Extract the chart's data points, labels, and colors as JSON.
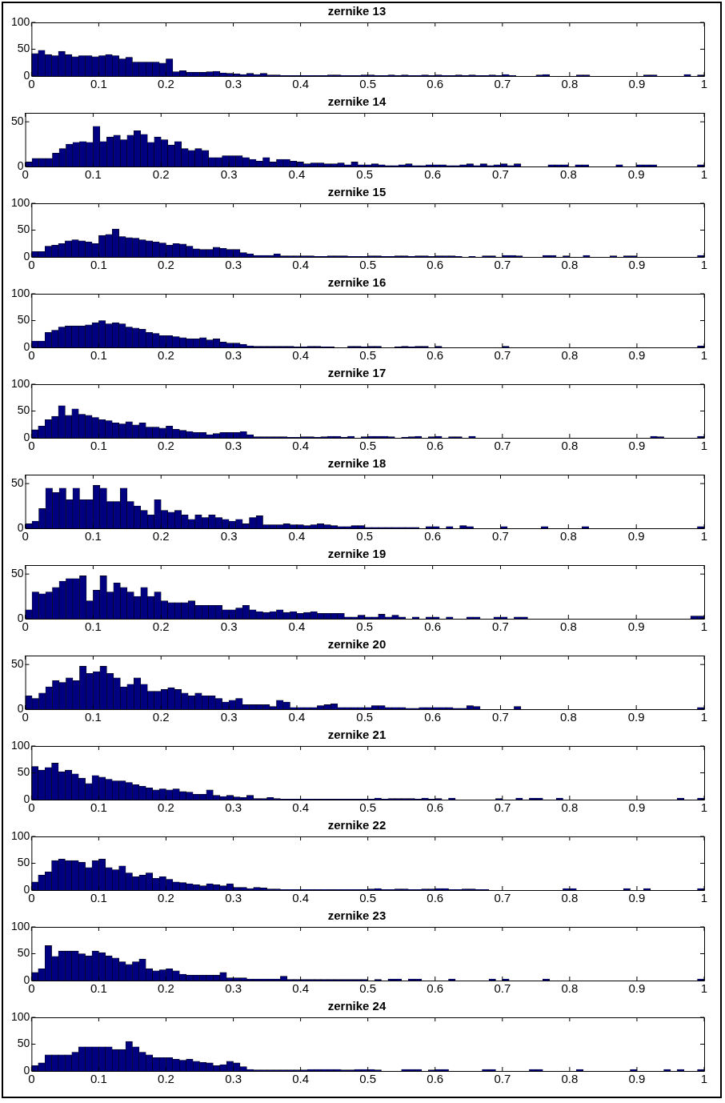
{
  "chart_data": [
    {
      "type": "histogram",
      "title": "zernike 13",
      "color": "#000080",
      "xlim": [
        0,
        1
      ],
      "xticks": [
        0,
        0.1,
        0.2,
        0.3,
        0.4,
        0.5,
        0.6,
        0.7,
        0.8,
        0.9,
        1
      ],
      "ylim": [
        0,
        100
      ],
      "yticks": [
        0,
        50,
        100
      ],
      "bins": [
        0,
        0.01,
        0.02,
        0.03,
        0.04,
        0.05,
        0.06,
        0.07,
        0.08,
        0.09,
        0.1,
        0.11,
        0.12,
        0.13,
        0.14,
        0.15,
        0.16,
        0.17,
        0.18,
        0.19,
        0.2,
        0.21,
        0.22,
        0.23,
        0.24,
        0.25,
        0.26,
        0.27,
        0.28,
        0.29,
        0.3,
        0.31,
        0.32,
        0.33,
        0.34,
        0.35,
        0.36,
        0.37,
        0.38,
        0.39,
        0.4,
        0.41,
        0.42,
        0.43,
        0.44,
        0.45,
        0.46,
        0.47,
        0.48,
        0.49,
        0.5,
        0.51,
        0.52,
        0.53,
        0.54,
        0.55,
        0.56,
        0.57,
        0.58,
        0.59,
        0.6,
        0.61,
        0.62,
        0.63,
        0.64,
        0.65,
        0.66,
        0.67,
        0.68,
        0.69,
        0.7,
        0.71,
        0.72,
        0.73,
        0.74,
        0.75,
        0.76,
        0.77,
        0.78,
        0.79,
        0.8,
        0.81,
        0.82,
        0.83,
        0.84,
        0.85,
        0.86,
        0.87,
        0.88,
        0.89,
        0.9,
        0.91,
        0.92,
        0.93,
        0.94,
        0.95,
        0.96,
        0.97,
        0.98,
        0.99,
        1
      ],
      "values": [
        42,
        48,
        40,
        38,
        46,
        40,
        36,
        38,
        38,
        36,
        38,
        40,
        38,
        32,
        35,
        26,
        26,
        26,
        26,
        24,
        32,
        8,
        10,
        7,
        7,
        7,
        8,
        9,
        6,
        5,
        4,
        3,
        5,
        3,
        5,
        2,
        2,
        1,
        1,
        1,
        1,
        1,
        1,
        1,
        2,
        2,
        1,
        1,
        1,
        2,
        2,
        1,
        1,
        2,
        1,
        2,
        1,
        1,
        2,
        1,
        2,
        1,
        1,
        2,
        1,
        2,
        1,
        1,
        2,
        1,
        3,
        1,
        0,
        0,
        0,
        2,
        3,
        0,
        0,
        0,
        0,
        2,
        2,
        0,
        0,
        0,
        0,
        0,
        0,
        0,
        0,
        2,
        2,
        0,
        0,
        0,
        0,
        3,
        0,
        2
      ]
    },
    {
      "type": "histogram",
      "title": "zernike 14",
      "color": "#000080",
      "xlim": [
        0,
        1
      ],
      "xticks": [
        0,
        0.1,
        0.2,
        0.3,
        0.4,
        0.5,
        0.6,
        0.7,
        0.8,
        0.9,
        1
      ],
      "ylim": [
        0,
        60
      ],
      "yticks": [
        0,
        50
      ],
      "bins": [
        0,
        0.01,
        0.02,
        0.03,
        0.04,
        0.05,
        0.06,
        0.07,
        0.08,
        0.09,
        0.1,
        0.11,
        0.12,
        0.13,
        0.14,
        0.15,
        0.16,
        0.17,
        0.18,
        0.19,
        0.2,
        0.21,
        0.22,
        0.23,
        0.24,
        0.25,
        0.26,
        0.27,
        0.28,
        0.29,
        0.3,
        0.31,
        0.32,
        0.33,
        0.34,
        0.35,
        0.36,
        0.37,
        0.38,
        0.39,
        0.4,
        0.41,
        0.42,
        0.43,
        0.44,
        0.45,
        0.46,
        0.47,
        0.48,
        0.49,
        0.5,
        0.51,
        0.52,
        0.53,
        0.54,
        0.55,
        0.56,
        0.57,
        0.58,
        0.59,
        0.6,
        0.61,
        0.62,
        0.63,
        0.64,
        0.65,
        0.66,
        0.67,
        0.68,
        0.69,
        0.7,
        0.71,
        0.72,
        0.73,
        0.74,
        0.75,
        0.76,
        0.77,
        0.78,
        0.79,
        0.8,
        0.81,
        0.82,
        0.83,
        0.84,
        0.85,
        0.86,
        0.87,
        0.88,
        0.89,
        0.9,
        0.91,
        0.92,
        0.93,
        0.94,
        0.95,
        0.96,
        0.97,
        0.98,
        0.99,
        1
      ],
      "values": [
        5,
        9,
        9,
        9,
        15,
        20,
        25,
        27,
        28,
        27,
        45,
        28,
        33,
        35,
        30,
        35,
        40,
        36,
        27,
        33,
        30,
        24,
        28,
        20,
        18,
        20,
        18,
        10,
        10,
        12,
        12,
        12,
        10,
        8,
        6,
        10,
        5,
        8,
        8,
        6,
        5,
        3,
        4,
        4,
        3,
        3,
        4,
        2,
        5,
        2,
        2,
        3,
        2,
        1,
        1,
        2,
        3,
        1,
        1,
        2,
        2,
        2,
        1,
        1,
        2,
        3,
        1,
        3,
        1,
        2,
        3,
        1,
        3,
        0,
        0,
        0,
        0,
        2,
        2,
        2,
        0,
        2,
        2,
        0,
        0,
        0,
        0,
        2,
        0,
        0,
        2,
        2,
        2,
        0,
        0,
        0,
        0,
        0,
        0,
        2
      ]
    },
    {
      "type": "histogram",
      "title": "zernike 15",
      "color": "#000080",
      "xlim": [
        0,
        1
      ],
      "xticks": [
        0,
        0.1,
        0.2,
        0.3,
        0.4,
        0.5,
        0.6,
        0.7,
        0.8,
        0.9,
        1
      ],
      "ylim": [
        0,
        100
      ],
      "yticks": [
        0,
        50,
        100
      ],
      "bins": [
        0,
        0.01,
        0.02,
        0.03,
        0.04,
        0.05,
        0.06,
        0.07,
        0.08,
        0.09,
        0.1,
        0.11,
        0.12,
        0.13,
        0.14,
        0.15,
        0.16,
        0.17,
        0.18,
        0.19,
        0.2,
        0.21,
        0.22,
        0.23,
        0.24,
        0.25,
        0.26,
        0.27,
        0.28,
        0.29,
        0.3,
        0.31,
        0.32,
        0.33,
        0.34,
        0.35,
        0.36,
        0.37,
        0.38,
        0.39,
        0.4,
        0.41,
        0.42,
        0.43,
        0.44,
        0.45,
        0.46,
        0.47,
        0.48,
        0.49,
        0.5,
        0.51,
        0.52,
        0.53,
        0.54,
        0.55,
        0.56,
        0.57,
        0.58,
        0.59,
        0.6,
        0.61,
        0.62,
        0.63,
        0.64,
        0.65,
        0.66,
        0.67,
        0.68,
        0.69,
        0.7,
        0.71,
        0.72,
        0.73,
        0.74,
        0.75,
        0.76,
        0.77,
        0.78,
        0.79,
        0.8,
        0.81,
        0.82,
        0.83,
        0.84,
        0.85,
        0.86,
        0.87,
        0.88,
        0.89,
        0.9,
        0.91,
        0.92,
        0.93,
        0.94,
        0.95,
        0.96,
        0.97,
        0.98,
        0.99,
        1
      ],
      "values": [
        10,
        10,
        20,
        22,
        25,
        30,
        32,
        30,
        28,
        25,
        40,
        42,
        52,
        38,
        36,
        35,
        32,
        30,
        28,
        26,
        22,
        25,
        24,
        20,
        15,
        14,
        14,
        18,
        16,
        14,
        14,
        8,
        6,
        3,
        3,
        3,
        6,
        2,
        2,
        2,
        2,
        2,
        1,
        1,
        2,
        2,
        2,
        1,
        1,
        1,
        2,
        2,
        1,
        1,
        2,
        2,
        1,
        2,
        2,
        1,
        2,
        2,
        2,
        1,
        0,
        1,
        0,
        2,
        2,
        0,
        3,
        3,
        2,
        0,
        0,
        0,
        3,
        3,
        0,
        2,
        0,
        0,
        3,
        0,
        0,
        0,
        2,
        0,
        2,
        2,
        0,
        0,
        0,
        0,
        0,
        0,
        0,
        0,
        0,
        3
      ]
    },
    {
      "type": "histogram",
      "title": "zernike 16",
      "color": "#000080",
      "xlim": [
        0,
        1
      ],
      "xticks": [
        0,
        0.1,
        0.2,
        0.3,
        0.4,
        0.5,
        0.6,
        0.7,
        0.8,
        0.9,
        1
      ],
      "ylim": [
        0,
        100
      ],
      "yticks": [
        0,
        50,
        100
      ],
      "bins": [
        0,
        0.01,
        0.02,
        0.03,
        0.04,
        0.05,
        0.06,
        0.07,
        0.08,
        0.09,
        0.1,
        0.11,
        0.12,
        0.13,
        0.14,
        0.15,
        0.16,
        0.17,
        0.18,
        0.19,
        0.2,
        0.21,
        0.22,
        0.23,
        0.24,
        0.25,
        0.26,
        0.27,
        0.28,
        0.29,
        0.3,
        0.31,
        0.32,
        0.33,
        0.34,
        0.35,
        0.36,
        0.37,
        0.38,
        0.39,
        0.4,
        0.41,
        0.42,
        0.43,
        0.44,
        0.45,
        0.46,
        0.47,
        0.48,
        0.49,
        0.5,
        0.51,
        0.52,
        0.53,
        0.54,
        0.55,
        0.56,
        0.57,
        0.58,
        0.59,
        0.6,
        0.61,
        0.62,
        0.63,
        0.64,
        0.65,
        0.66,
        0.67,
        0.68,
        0.69,
        0.7,
        0.71,
        0.72,
        0.73,
        0.74,
        0.75,
        0.76,
        0.77,
        0.78,
        0.79,
        0.8,
        0.81,
        0.82,
        0.83,
        0.84,
        0.85,
        0.86,
        0.87,
        0.88,
        0.89,
        0.9,
        0.91,
        0.92,
        0.93,
        0.94,
        0.95,
        0.96,
        0.97,
        0.98,
        0.99,
        1
      ],
      "values": [
        12,
        12,
        28,
        32,
        38,
        40,
        40,
        40,
        42,
        46,
        50,
        44,
        46,
        44,
        38,
        36,
        34,
        28,
        26,
        22,
        22,
        20,
        18,
        16,
        16,
        18,
        14,
        16,
        10,
        8,
        8,
        6,
        3,
        2,
        2,
        2,
        2,
        2,
        2,
        1,
        1,
        2,
        2,
        1,
        1,
        0,
        0,
        2,
        2,
        1,
        2,
        2,
        0,
        0,
        1,
        2,
        1,
        2,
        2,
        0,
        2,
        0,
        0,
        0,
        0,
        0,
        0,
        0,
        0,
        0,
        2,
        0,
        0,
        0,
        0,
        0,
        0,
        0,
        0,
        0,
        0,
        0,
        0,
        0,
        0,
        0,
        0,
        0,
        0,
        0,
        0,
        0,
        0,
        0,
        0,
        0,
        0,
        0,
        0,
        3
      ]
    },
    {
      "type": "histogram",
      "title": "zernike 17",
      "color": "#000080",
      "xlim": [
        0,
        1
      ],
      "xticks": [
        0,
        0.1,
        0.2,
        0.3,
        0.4,
        0.5,
        0.6,
        0.7,
        0.8,
        0.9,
        1
      ],
      "ylim": [
        0,
        100
      ],
      "yticks": [
        0,
        50,
        100
      ],
      "bins": [
        0,
        0.01,
        0.02,
        0.03,
        0.04,
        0.05,
        0.06,
        0.07,
        0.08,
        0.09,
        0.1,
        0.11,
        0.12,
        0.13,
        0.14,
        0.15,
        0.16,
        0.17,
        0.18,
        0.19,
        0.2,
        0.21,
        0.22,
        0.23,
        0.24,
        0.25,
        0.26,
        0.27,
        0.28,
        0.29,
        0.3,
        0.31,
        0.32,
        0.33,
        0.34,
        0.35,
        0.36,
        0.37,
        0.38,
        0.39,
        0.4,
        0.41,
        0.42,
        0.43,
        0.44,
        0.45,
        0.46,
        0.47,
        0.48,
        0.49,
        0.5,
        0.51,
        0.52,
        0.53,
        0.54,
        0.55,
        0.56,
        0.57,
        0.58,
        0.59,
        0.6,
        0.61,
        0.62,
        0.63,
        0.64,
        0.65,
        0.66,
        0.67,
        0.68,
        0.69,
        0.7,
        0.71,
        0.72,
        0.73,
        0.74,
        0.75,
        0.76,
        0.77,
        0.78,
        0.79,
        0.8,
        0.81,
        0.82,
        0.83,
        0.84,
        0.85,
        0.86,
        0.87,
        0.88,
        0.89,
        0.9,
        0.91,
        0.92,
        0.93,
        0.94,
        0.95,
        0.96,
        0.97,
        0.98,
        0.99,
        1
      ],
      "values": [
        15,
        22,
        34,
        40,
        60,
        42,
        54,
        44,
        42,
        38,
        34,
        32,
        28,
        26,
        30,
        24,
        28,
        20,
        20,
        18,
        22,
        16,
        14,
        12,
        10,
        10,
        6,
        8,
        10,
        10,
        10,
        12,
        6,
        2,
        2,
        2,
        2,
        2,
        1,
        1,
        2,
        2,
        1,
        2,
        3,
        3,
        1,
        3,
        0,
        2,
        3,
        3,
        3,
        2,
        0,
        1,
        2,
        3,
        0,
        2,
        3,
        0,
        2,
        2,
        0,
        3,
        0,
        0,
        0,
        0,
        0,
        0,
        0,
        0,
        0,
        0,
        0,
        0,
        0,
        0,
        0,
        0,
        0,
        0,
        0,
        0,
        0,
        0,
        0,
        0,
        0,
        0,
        3,
        2,
        0,
        0,
        0,
        0,
        0,
        3
      ]
    },
    {
      "type": "histogram",
      "title": "zernike 18",
      "color": "#000080",
      "xlim": [
        0,
        1
      ],
      "xticks": [
        0,
        0.1,
        0.2,
        0.3,
        0.4,
        0.5,
        0.6,
        0.7,
        0.8,
        0.9,
        1
      ],
      "ylim": [
        0,
        60
      ],
      "yticks": [
        0,
        50
      ],
      "bins": [
        0,
        0.01,
        0.02,
        0.03,
        0.04,
        0.05,
        0.06,
        0.07,
        0.08,
        0.09,
        0.1,
        0.11,
        0.12,
        0.13,
        0.14,
        0.15,
        0.16,
        0.17,
        0.18,
        0.19,
        0.2,
        0.21,
        0.22,
        0.23,
        0.24,
        0.25,
        0.26,
        0.27,
        0.28,
        0.29,
        0.3,
        0.31,
        0.32,
        0.33,
        0.34,
        0.35,
        0.36,
        0.37,
        0.38,
        0.39,
        0.4,
        0.41,
        0.42,
        0.43,
        0.44,
        0.45,
        0.46,
        0.47,
        0.48,
        0.49,
        0.5,
        0.51,
        0.52,
        0.53,
        0.54,
        0.55,
        0.56,
        0.57,
        0.58,
        0.59,
        0.6,
        0.61,
        0.62,
        0.63,
        0.64,
        0.65,
        0.66,
        0.67,
        0.68,
        0.69,
        0.7,
        0.71,
        0.72,
        0.73,
        0.74,
        0.75,
        0.76,
        0.77,
        0.78,
        0.79,
        0.8,
        0.81,
        0.82,
        0.83,
        0.84,
        0.85,
        0.86,
        0.87,
        0.88,
        0.89,
        0.9,
        0.91,
        0.92,
        0.93,
        0.94,
        0.95,
        0.96,
        0.97,
        0.98,
        0.99,
        1
      ],
      "values": [
        5,
        8,
        22,
        45,
        40,
        45,
        32,
        45,
        32,
        32,
        48,
        45,
        30,
        30,
        45,
        30,
        25,
        20,
        15,
        32,
        20,
        18,
        20,
        15,
        10,
        15,
        12,
        15,
        12,
        10,
        8,
        10,
        5,
        12,
        14,
        4,
        4,
        4,
        5,
        4,
        4,
        3,
        4,
        5,
        4,
        3,
        2,
        2,
        3,
        3,
        1,
        1,
        1,
        1,
        1,
        1,
        1,
        1,
        0,
        2,
        2,
        0,
        2,
        0,
        3,
        2,
        0,
        0,
        0,
        0,
        2,
        0,
        0,
        0,
        0,
        0,
        2,
        0,
        0,
        0,
        0,
        0,
        2,
        0,
        0,
        0,
        0,
        0,
        0,
        0,
        0,
        0,
        0,
        0,
        0,
        0,
        0,
        0,
        0,
        2
      ]
    },
    {
      "type": "histogram",
      "title": "zernike 19",
      "color": "#000080",
      "xlim": [
        0,
        1
      ],
      "xticks": [
        0,
        0.1,
        0.2,
        0.3,
        0.4,
        0.5,
        0.6,
        0.7,
        0.8,
        0.9,
        1
      ],
      "ylim": [
        0,
        60
      ],
      "yticks": [
        0,
        50
      ],
      "bins": [
        0,
        0.01,
        0.02,
        0.03,
        0.04,
        0.05,
        0.06,
        0.07,
        0.08,
        0.09,
        0.1,
        0.11,
        0.12,
        0.13,
        0.14,
        0.15,
        0.16,
        0.17,
        0.18,
        0.19,
        0.2,
        0.21,
        0.22,
        0.23,
        0.24,
        0.25,
        0.26,
        0.27,
        0.28,
        0.29,
        0.3,
        0.31,
        0.32,
        0.33,
        0.34,
        0.35,
        0.36,
        0.37,
        0.38,
        0.39,
        0.4,
        0.41,
        0.42,
        0.43,
        0.44,
        0.45,
        0.46,
        0.47,
        0.48,
        0.49,
        0.5,
        0.51,
        0.52,
        0.53,
        0.54,
        0.55,
        0.56,
        0.57,
        0.58,
        0.59,
        0.6,
        0.61,
        0.62,
        0.63,
        0.64,
        0.65,
        0.66,
        0.67,
        0.68,
        0.69,
        0.7,
        0.71,
        0.72,
        0.73,
        0.74,
        0.75,
        0.76,
        0.77,
        0.78,
        0.79,
        0.8,
        0.81,
        0.82,
        0.83,
        0.84,
        0.85,
        0.86,
        0.87,
        0.88,
        0.89,
        0.9,
        0.91,
        0.92,
        0.93,
        0.94,
        0.95,
        0.96,
        0.97,
        0.98,
        0.99,
        1
      ],
      "values": [
        10,
        30,
        28,
        30,
        35,
        42,
        45,
        45,
        48,
        20,
        32,
        48,
        30,
        40,
        35,
        30,
        25,
        35,
        25,
        30,
        20,
        18,
        18,
        18,
        20,
        15,
        15,
        15,
        15,
        10,
        10,
        12,
        15,
        10,
        8,
        7,
        8,
        10,
        7,
        8,
        6,
        7,
        8,
        6,
        6,
        6,
        6,
        2,
        2,
        4,
        2,
        2,
        5,
        2,
        4,
        2,
        0,
        2,
        0,
        2,
        2,
        0,
        2,
        0,
        0,
        2,
        2,
        0,
        0,
        2,
        2,
        0,
        2,
        2,
        0,
        0,
        0,
        0,
        0,
        0,
        0,
        0,
        0,
        0,
        0,
        0,
        0,
        0,
        0,
        0,
        0,
        0,
        0,
        0,
        0,
        0,
        0,
        0,
        3,
        3
      ]
    },
    {
      "type": "histogram",
      "title": "zernike 20",
      "color": "#000080",
      "xlim": [
        0,
        1
      ],
      "xticks": [
        0,
        0.1,
        0.2,
        0.3,
        0.4,
        0.5,
        0.6,
        0.7,
        0.8,
        0.9,
        1
      ],
      "ylim": [
        0,
        60
      ],
      "yticks": [
        0,
        50
      ],
      "bins": [
        0,
        0.01,
        0.02,
        0.03,
        0.04,
        0.05,
        0.06,
        0.07,
        0.08,
        0.09,
        0.1,
        0.11,
        0.12,
        0.13,
        0.14,
        0.15,
        0.16,
        0.17,
        0.18,
        0.19,
        0.2,
        0.21,
        0.22,
        0.23,
        0.24,
        0.25,
        0.26,
        0.27,
        0.28,
        0.29,
        0.3,
        0.31,
        0.32,
        0.33,
        0.34,
        0.35,
        0.36,
        0.37,
        0.38,
        0.39,
        0.4,
        0.41,
        0.42,
        0.43,
        0.44,
        0.45,
        0.46,
        0.47,
        0.48,
        0.49,
        0.5,
        0.51,
        0.52,
        0.53,
        0.54,
        0.55,
        0.56,
        0.57,
        0.58,
        0.59,
        0.6,
        0.61,
        0.62,
        0.63,
        0.64,
        0.65,
        0.66,
        0.67,
        0.68,
        0.69,
        0.7,
        0.71,
        0.72,
        0.73,
        0.74,
        0.75,
        0.76,
        0.77,
        0.78,
        0.79,
        0.8,
        0.81,
        0.82,
        0.83,
        0.84,
        0.85,
        0.86,
        0.87,
        0.88,
        0.89,
        0.9,
        0.91,
        0.92,
        0.93,
        0.94,
        0.95,
        0.96,
        0.97,
        0.98,
        0.99,
        1
      ],
      "values": [
        15,
        12,
        18,
        25,
        32,
        30,
        35,
        32,
        48,
        40,
        42,
        48,
        40,
        35,
        25,
        28,
        35,
        28,
        20,
        20,
        22,
        24,
        22,
        18,
        15,
        18,
        15,
        15,
        12,
        8,
        10,
        12,
        5,
        5,
        5,
        5,
        3,
        10,
        8,
        2,
        2,
        2,
        2,
        4,
        5,
        6,
        2,
        2,
        2,
        2,
        2,
        4,
        4,
        2,
        2,
        2,
        1,
        1,
        2,
        2,
        2,
        2,
        2,
        1,
        1,
        4,
        3,
        0,
        0,
        0,
        0,
        0,
        3,
        0,
        0,
        0,
        0,
        0,
        0,
        0,
        0,
        0,
        0,
        0,
        0,
        0,
        0,
        0,
        0,
        0,
        0,
        0,
        0,
        0,
        0,
        0,
        0,
        0,
        0,
        2
      ]
    },
    {
      "type": "histogram",
      "title": "zernike 21",
      "color": "#000080",
      "xlim": [
        0,
        1
      ],
      "xticks": [
        0,
        0.1,
        0.2,
        0.3,
        0.4,
        0.5,
        0.6,
        0.7,
        0.8,
        0.9,
        1
      ],
      "ylim": [
        0,
        100
      ],
      "yticks": [
        0,
        50,
        100
      ],
      "bins": [
        0,
        0.01,
        0.02,
        0.03,
        0.04,
        0.05,
        0.06,
        0.07,
        0.08,
        0.09,
        0.1,
        0.11,
        0.12,
        0.13,
        0.14,
        0.15,
        0.16,
        0.17,
        0.18,
        0.19,
        0.2,
        0.21,
        0.22,
        0.23,
        0.24,
        0.25,
        0.26,
        0.27,
        0.28,
        0.29,
        0.3,
        0.31,
        0.32,
        0.33,
        0.34,
        0.35,
        0.36,
        0.37,
        0.38,
        0.39,
        0.4,
        0.41,
        0.42,
        0.43,
        0.44,
        0.45,
        0.46,
        0.47,
        0.48,
        0.49,
        0.5,
        0.51,
        0.52,
        0.53,
        0.54,
        0.55,
        0.56,
        0.57,
        0.58,
        0.59,
        0.6,
        0.61,
        0.62,
        0.63,
        0.64,
        0.65,
        0.66,
        0.67,
        0.68,
        0.69,
        0.7,
        0.71,
        0.72,
        0.73,
        0.74,
        0.75,
        0.76,
        0.77,
        0.78,
        0.79,
        0.8,
        0.81,
        0.82,
        0.83,
        0.84,
        0.85,
        0.86,
        0.87,
        0.88,
        0.89,
        0.9,
        0.91,
        0.92,
        0.93,
        0.94,
        0.95,
        0.96,
        0.97,
        0.98,
        0.99,
        1
      ],
      "values": [
        62,
        55,
        60,
        68,
        52,
        55,
        48,
        40,
        30,
        45,
        42,
        38,
        35,
        35,
        32,
        28,
        25,
        22,
        18,
        20,
        18,
        20,
        15,
        14,
        10,
        10,
        18,
        8,
        6,
        8,
        5,
        4,
        8,
        2,
        2,
        4,
        2,
        1,
        1,
        1,
        1,
        1,
        1,
        1,
        1,
        1,
        1,
        1,
        1,
        1,
        1,
        3,
        1,
        2,
        2,
        2,
        2,
        1,
        3,
        1,
        2,
        0,
        3,
        0,
        0,
        0,
        0,
        0,
        0,
        2,
        0,
        0,
        3,
        0,
        3,
        3,
        0,
        0,
        3,
        0,
        0,
        0,
        0,
        0,
        0,
        0,
        0,
        0,
        0,
        0,
        0,
        0,
        0,
        0,
        0,
        0,
        3,
        0,
        0,
        3
      ]
    },
    {
      "type": "histogram",
      "title": "zernike 22",
      "color": "#000080",
      "xlim": [
        0,
        1
      ],
      "xticks": [
        0,
        0.1,
        0.2,
        0.3,
        0.4,
        0.5,
        0.6,
        0.7,
        0.8,
        0.9,
        1
      ],
      "ylim": [
        0,
        100
      ],
      "yticks": [
        0,
        50,
        100
      ],
      "bins": [
        0,
        0.01,
        0.02,
        0.03,
        0.04,
        0.05,
        0.06,
        0.07,
        0.08,
        0.09,
        0.1,
        0.11,
        0.12,
        0.13,
        0.14,
        0.15,
        0.16,
        0.17,
        0.18,
        0.19,
        0.2,
        0.21,
        0.22,
        0.23,
        0.24,
        0.25,
        0.26,
        0.27,
        0.28,
        0.29,
        0.3,
        0.31,
        0.32,
        0.33,
        0.34,
        0.35,
        0.36,
        0.37,
        0.38,
        0.39,
        0.4,
        0.41,
        0.42,
        0.43,
        0.44,
        0.45,
        0.46,
        0.47,
        0.48,
        0.49,
        0.5,
        0.51,
        0.52,
        0.53,
        0.54,
        0.55,
        0.56,
        0.57,
        0.58,
        0.59,
        0.6,
        0.61,
        0.62,
        0.63,
        0.64,
        0.65,
        0.66,
        0.67,
        0.68,
        0.69,
        0.7,
        0.71,
        0.72,
        0.73,
        0.74,
        0.75,
        0.76,
        0.77,
        0.78,
        0.79,
        0.8,
        0.81,
        0.82,
        0.83,
        0.84,
        0.85,
        0.86,
        0.87,
        0.88,
        0.89,
        0.9,
        0.91,
        0.92,
        0.93,
        0.94,
        0.95,
        0.96,
        0.97,
        0.98,
        0.99,
        1
      ],
      "values": [
        15,
        28,
        34,
        55,
        58,
        55,
        55,
        52,
        42,
        55,
        58,
        42,
        38,
        45,
        32,
        25,
        28,
        32,
        22,
        25,
        20,
        15,
        14,
        12,
        10,
        8,
        12,
        10,
        8,
        12,
        5,
        5,
        3,
        5,
        4,
        2,
        2,
        1,
        1,
        1,
        1,
        1,
        1,
        1,
        1,
        1,
        1,
        1,
        1,
        1,
        2,
        3,
        1,
        1,
        2,
        2,
        1,
        1,
        2,
        2,
        3,
        3,
        1,
        1,
        2,
        2,
        1,
        1,
        0,
        0,
        0,
        0,
        0,
        0,
        0,
        0,
        0,
        0,
        0,
        3,
        3,
        0,
        0,
        0,
        0,
        0,
        0,
        0,
        3,
        0,
        0,
        3,
        0,
        0,
        0,
        0,
        0,
        0,
        0,
        3
      ]
    },
    {
      "type": "histogram",
      "title": "zernike 23",
      "color": "#000080",
      "xlim": [
        0,
        1
      ],
      "xticks": [
        0,
        0.1,
        0.2,
        0.3,
        0.4,
        0.5,
        0.6,
        0.7,
        0.8,
        0.9,
        1
      ],
      "ylim": [
        0,
        100
      ],
      "yticks": [
        0,
        50,
        100
      ],
      "bins": [
        0,
        0.01,
        0.02,
        0.03,
        0.04,
        0.05,
        0.06,
        0.07,
        0.08,
        0.09,
        0.1,
        0.11,
        0.12,
        0.13,
        0.14,
        0.15,
        0.16,
        0.17,
        0.18,
        0.19,
        0.2,
        0.21,
        0.22,
        0.23,
        0.24,
        0.25,
        0.26,
        0.27,
        0.28,
        0.29,
        0.3,
        0.31,
        0.32,
        0.33,
        0.34,
        0.35,
        0.36,
        0.37,
        0.38,
        0.39,
        0.4,
        0.41,
        0.42,
        0.43,
        0.44,
        0.45,
        0.46,
        0.47,
        0.48,
        0.49,
        0.5,
        0.51,
        0.52,
        0.53,
        0.54,
        0.55,
        0.56,
        0.57,
        0.58,
        0.59,
        0.6,
        0.61,
        0.62,
        0.63,
        0.64,
        0.65,
        0.66,
        0.67,
        0.68,
        0.69,
        0.7,
        0.71,
        0.72,
        0.73,
        0.74,
        0.75,
        0.76,
        0.77,
        0.78,
        0.79,
        0.8,
        0.81,
        0.82,
        0.83,
        0.84,
        0.85,
        0.86,
        0.87,
        0.88,
        0.89,
        0.9,
        0.91,
        0.92,
        0.93,
        0.94,
        0.95,
        0.96,
        0.97,
        0.98,
        0.99,
        1
      ],
      "values": [
        15,
        22,
        65,
        45,
        55,
        55,
        55,
        50,
        46,
        55,
        52,
        46,
        42,
        35,
        30,
        35,
        40,
        22,
        18,
        20,
        22,
        18,
        12,
        10,
        10,
        10,
        10,
        10,
        15,
        5,
        5,
        5,
        3,
        3,
        3,
        3,
        3,
        8,
        2,
        2,
        2,
        2,
        2,
        2,
        2,
        2,
        2,
        2,
        2,
        2,
        0,
        2,
        0,
        3,
        3,
        0,
        3,
        3,
        0,
        0,
        0,
        0,
        3,
        0,
        0,
        0,
        0,
        0,
        3,
        0,
        3,
        0,
        0,
        0,
        0,
        0,
        3,
        0,
        0,
        0,
        0,
        0,
        0,
        0,
        0,
        0,
        0,
        0,
        0,
        0,
        0,
        0,
        0,
        0,
        0,
        0,
        0,
        0,
        0,
        3
      ]
    },
    {
      "type": "histogram",
      "title": "zernike 24",
      "color": "#000080",
      "xlim": [
        0,
        1
      ],
      "xticks": [
        0,
        0.1,
        0.2,
        0.3,
        0.4,
        0.5,
        0.6,
        0.7,
        0.8,
        0.9,
        1
      ],
      "ylim": [
        0,
        100
      ],
      "yticks": [
        0,
        50,
        100
      ],
      "bins": [
        0,
        0.01,
        0.02,
        0.03,
        0.04,
        0.05,
        0.06,
        0.07,
        0.08,
        0.09,
        0.1,
        0.11,
        0.12,
        0.13,
        0.14,
        0.15,
        0.16,
        0.17,
        0.18,
        0.19,
        0.2,
        0.21,
        0.22,
        0.23,
        0.24,
        0.25,
        0.26,
        0.27,
        0.28,
        0.29,
        0.3,
        0.31,
        0.32,
        0.33,
        0.34,
        0.35,
        0.36,
        0.37,
        0.38,
        0.39,
        0.4,
        0.41,
        0.42,
        0.43,
        0.44,
        0.45,
        0.46,
        0.47,
        0.48,
        0.49,
        0.5,
        0.51,
        0.52,
        0.53,
        0.54,
        0.55,
        0.56,
        0.57,
        0.58,
        0.59,
        0.6,
        0.61,
        0.62,
        0.63,
        0.64,
        0.65,
        0.66,
        0.67,
        0.68,
        0.69,
        0.7,
        0.71,
        0.72,
        0.73,
        0.74,
        0.75,
        0.76,
        0.77,
        0.78,
        0.79,
        0.8,
        0.81,
        0.82,
        0.83,
        0.84,
        0.85,
        0.86,
        0.87,
        0.88,
        0.89,
        0.9,
        0.91,
        0.92,
        0.93,
        0.94,
        0.95,
        0.96,
        0.97,
        0.98,
        0.99,
        1
      ],
      "values": [
        10,
        15,
        30,
        30,
        30,
        30,
        35,
        45,
        45,
        45,
        45,
        45,
        40,
        40,
        55,
        45,
        35,
        30,
        25,
        25,
        25,
        22,
        20,
        22,
        18,
        16,
        15,
        10,
        12,
        18,
        15,
        8,
        3,
        2,
        2,
        2,
        2,
        2,
        2,
        2,
        2,
        3,
        3,
        3,
        3,
        3,
        2,
        2,
        3,
        3,
        3,
        2,
        0,
        0,
        0,
        3,
        3,
        3,
        0,
        2,
        3,
        3,
        0,
        0,
        0,
        0,
        0,
        3,
        3,
        0,
        0,
        0,
        0,
        0,
        3,
        3,
        0,
        0,
        0,
        0,
        0,
        3,
        0,
        0,
        0,
        0,
        0,
        0,
        0,
        3,
        0,
        0,
        0,
        0,
        3,
        0,
        3,
        0,
        0,
        3
      ]
    }
  ]
}
